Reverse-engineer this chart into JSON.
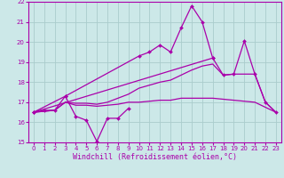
{
  "background_color": "#cce8e8",
  "grid_color": "#aacccc",
  "line_color": "#aa00aa",
  "xlabel": "Windchill (Refroidissement éolien,°C)",
  "xlim": [
    -0.5,
    23.5
  ],
  "ylim": [
    15.0,
    22.0
  ],
  "yticks": [
    15,
    16,
    17,
    18,
    19,
    20,
    21,
    22
  ],
  "xticks": [
    0,
    1,
    2,
    3,
    4,
    5,
    6,
    7,
    8,
    9,
    10,
    11,
    12,
    13,
    14,
    15,
    16,
    17,
    18,
    19,
    20,
    21,
    22,
    23
  ],
  "line1_x": [
    0,
    1,
    2,
    3,
    4,
    5,
    6,
    7,
    8,
    9
  ],
  "line1_y": [
    16.5,
    16.6,
    16.6,
    17.3,
    16.3,
    16.1,
    15.05,
    16.2,
    16.2,
    16.7
  ],
  "line2_x": [
    0,
    3,
    10,
    11,
    12,
    13,
    14,
    15,
    16,
    17
  ],
  "line2_y": [
    16.5,
    17.3,
    19.3,
    19.5,
    19.85,
    19.5,
    20.7,
    21.8,
    21.0,
    19.2
  ],
  "line3_x": [
    0,
    17,
    18,
    19,
    20,
    21,
    22,
    23
  ],
  "line3_y": [
    16.5,
    19.2,
    18.35,
    18.4,
    20.05,
    18.4,
    17.0,
    16.5
  ],
  "line4_x": [
    0,
    1,
    2,
    3,
    4,
    5,
    6,
    7,
    8,
    9,
    10,
    11,
    12,
    13,
    14,
    15,
    16,
    17,
    18,
    19,
    20,
    21,
    22,
    23
  ],
  "line4_y": [
    16.5,
    16.55,
    16.6,
    17.0,
    16.95,
    16.95,
    16.9,
    17.0,
    17.2,
    17.4,
    17.7,
    17.85,
    18.0,
    18.1,
    18.35,
    18.6,
    18.8,
    18.9,
    18.35,
    18.4,
    18.4,
    18.4,
    17.0,
    16.5
  ],
  "line5_x": [
    0,
    1,
    2,
    3,
    4,
    5,
    6,
    7,
    8,
    9,
    10,
    11,
    12,
    13,
    14,
    15,
    16,
    17,
    18,
    19,
    20,
    21,
    22,
    23
  ],
  "line5_y": [
    16.5,
    16.55,
    16.6,
    17.0,
    16.85,
    16.85,
    16.8,
    16.85,
    16.9,
    17.0,
    17.0,
    17.05,
    17.1,
    17.1,
    17.2,
    17.2,
    17.2,
    17.2,
    17.15,
    17.1,
    17.05,
    17.0,
    16.75,
    16.5
  ]
}
